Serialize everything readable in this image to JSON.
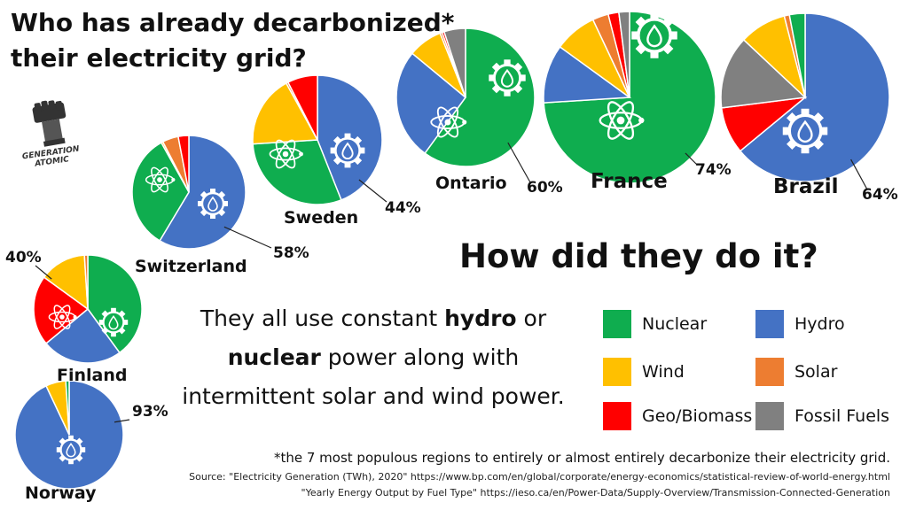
{
  "title_line1": "Who has already decarbonized*",
  "title_line2": "their electricity grid?",
  "logo_text": "GENERATION ATOMIC",
  "headline": "How did they do it?",
  "body": {
    "pre": "They all use constant ",
    "hydro": "hydro",
    "mid1": " or ",
    "nuclear": "nuclear",
    "mid2": " power along with intermittent solar and wind power."
  },
  "footnote": "*the 7 most populous regions to entirely or almost entirely decarbonize their electricity grid.",
  "source_line1": "Source: \"Electricity Generation (TWh), 2020\"  https://www.bp.com/en/global/corporate/energy-economics/statistical-review-of-world-energy.html",
  "source_line2": "\"Yearly Energy Output by Fuel Type\" https://ieso.ca/en/Power-Data/Supply-Overview/Transmission-Connected-Generation",
  "colors": {
    "Nuclear": "#0fad4f",
    "Hydro": "#4472c4",
    "Wind": "#ffc000",
    "Solar": "#ed7d31",
    "Geo/Biomass": "#ff0000",
    "Fossil Fuels": "#808080"
  },
  "legend": [
    {
      "label": "Nuclear",
      "key": "Nuclear"
    },
    {
      "label": "Hydro",
      "key": "Hydro"
    },
    {
      "label": "Wind",
      "key": "Wind"
    },
    {
      "label": "Solar",
      "key": "Solar"
    },
    {
      "label": "Geo/Biomass",
      "key": "Geo/Biomass"
    },
    {
      "label": "Fossil Fuels",
      "key": "Fossil Fuels"
    }
  ],
  "chart_data": {
    "type": "pie",
    "categories": [
      "Nuclear",
      "Hydro",
      "Wind",
      "Solar",
      "Geo/Biomass",
      "Fossil Fuels"
    ],
    "legend_position": "bottom-right",
    "pies": [
      {
        "region": "Ontario",
        "label": "Ontario",
        "percent_label": "60%",
        "slices": [
          {
            "category": "Nuclear",
            "value": 60
          },
          {
            "category": "Hydro",
            "value": 26
          },
          {
            "category": "Wind",
            "value": 8
          },
          {
            "category": "Solar",
            "value": 0.5
          },
          {
            "category": "Geo/Biomass",
            "value": 0.5
          },
          {
            "category": "Fossil Fuels",
            "value": 5
          }
        ]
      },
      {
        "region": "France",
        "label": "France",
        "percent_label": "74%",
        "slices": [
          {
            "category": "Nuclear",
            "value": 74
          },
          {
            "category": "Hydro",
            "value": 11
          },
          {
            "category": "Wind",
            "value": 8
          },
          {
            "category": "Solar",
            "value": 3
          },
          {
            "category": "Geo/Biomass",
            "value": 2
          },
          {
            "category": "Fossil Fuels",
            "value": 2
          }
        ]
      },
      {
        "region": "Brazil",
        "label": "Brazil",
        "percent_label": "64%",
        "slices": [
          {
            "category": "Hydro",
            "value": 64
          },
          {
            "category": "Geo/Biomass",
            "value": 9
          },
          {
            "category": "Fossil Fuels",
            "value": 14
          },
          {
            "category": "Wind",
            "value": 9
          },
          {
            "category": "Solar",
            "value": 1
          },
          {
            "category": "Nuclear",
            "value": 3
          }
        ]
      },
      {
        "region": "Sweden",
        "label": "Sweden",
        "percent_label": "44%",
        "slices": [
          {
            "category": "Hydro",
            "value": 44
          },
          {
            "category": "Nuclear",
            "value": 30
          },
          {
            "category": "Wind",
            "value": 18
          },
          {
            "category": "Solar",
            "value": 0.5
          },
          {
            "category": "Geo/Biomass",
            "value": 7.5
          }
        ]
      },
      {
        "region": "Switzerland",
        "label": "Switzerland",
        "percent_label": "58%",
        "slices": [
          {
            "category": "Hydro",
            "value": 58
          },
          {
            "category": "Nuclear",
            "value": 33
          },
          {
            "category": "Wind",
            "value": 0.5
          },
          {
            "category": "Solar",
            "value": 4.5
          },
          {
            "category": "Geo/Biomass",
            "value": 3
          }
        ]
      },
      {
        "region": "Finland",
        "label": "Finland",
        "percent_label": "40%",
        "slices": [
          {
            "category": "Nuclear",
            "value": 40
          },
          {
            "category": "Hydro",
            "value": 24
          },
          {
            "category": "Geo/Biomass",
            "value": 21
          },
          {
            "category": "Wind",
            "value": 14
          },
          {
            "category": "Solar",
            "value": 1
          }
        ]
      },
      {
        "region": "Norway",
        "label": "Norway",
        "percent_label": "93%",
        "slices": [
          {
            "category": "Hydro",
            "value": 93
          },
          {
            "category": "Wind",
            "value": 6
          },
          {
            "category": "Nuclear",
            "value": 1
          }
        ]
      }
    ]
  }
}
